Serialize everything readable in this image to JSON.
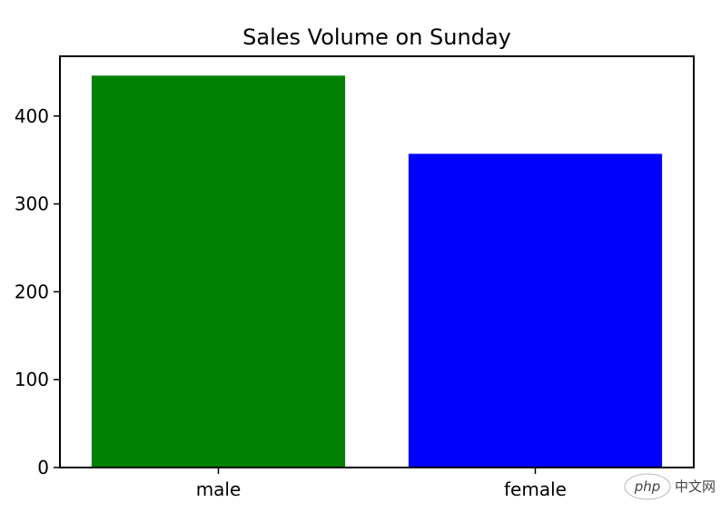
{
  "chart_data": {
    "type": "bar",
    "title": "Sales Volume on Sunday",
    "categories": [
      "male",
      "female"
    ],
    "values": [
      446,
      357
    ],
    "bar_colors": [
      "#008000",
      "#0000ff"
    ],
    "xlabel": "",
    "ylabel": "",
    "ylim": [
      0,
      468
    ],
    "yticks": [
      0,
      100,
      200,
      300,
      400
    ],
    "grid": false,
    "legend": false
  },
  "watermark": {
    "logo_text": "php",
    "site_text": "中文网"
  }
}
